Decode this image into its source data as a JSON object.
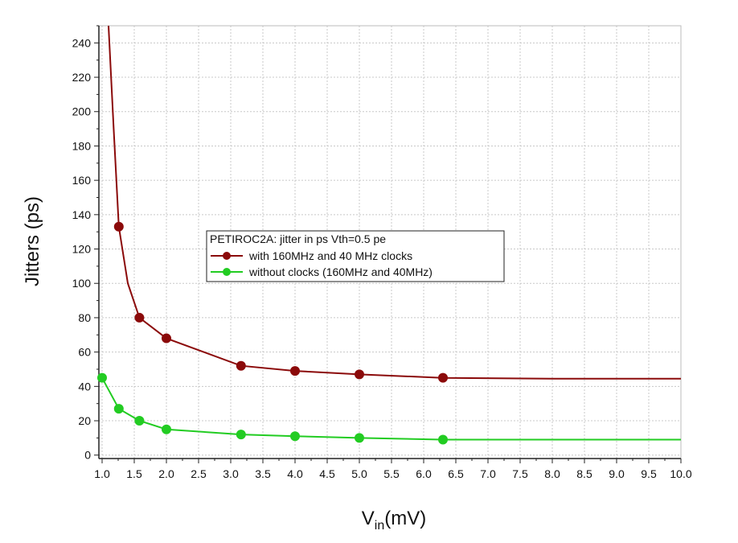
{
  "chart_data": {
    "type": "line",
    "title": "",
    "xlabel_main": "V",
    "xlabel_sub": "in",
    "xlabel_unit": "(mV)",
    "ylabel": "Jitters (ps)",
    "xlim": [
      0.95,
      10.0
    ],
    "ylim": [
      -2,
      250
    ],
    "x_ticks": [
      "1.0",
      "1.5",
      "2.0",
      "2.5",
      "3.0",
      "3.5",
      "4.0",
      "4.5",
      "5.0",
      "5.5",
      "6.0",
      "6.5",
      "7.0",
      "7.5",
      "8.0",
      "8.5",
      "9.0",
      "9.5",
      "10.0"
    ],
    "y_ticks": [
      "0",
      "20",
      "40",
      "60",
      "80",
      "100",
      "120",
      "140",
      "160",
      "180",
      "200",
      "220",
      "240"
    ],
    "grid": true,
    "legend": {
      "placement": "center",
      "title": "PETIROC2A: jitter in ps Vth=0.5 pe"
    },
    "series": [
      {
        "name": "with 160MHz and 40 MHz clocks",
        "color": "#8b0a0a",
        "x": [
          1.26,
          1.58,
          2.0,
          3.16,
          4.0,
          5.0,
          6.3
        ],
        "y": [
          133,
          80,
          68,
          52,
          49,
          47,
          45
        ],
        "curve": [
          [
            1.1,
            250
          ],
          [
            1.18,
            190
          ],
          [
            1.26,
            133
          ],
          [
            1.4,
            100
          ],
          [
            1.58,
            80
          ],
          [
            2.0,
            68
          ],
          [
            3.16,
            52
          ],
          [
            4.0,
            49
          ],
          [
            5.0,
            47
          ],
          [
            6.3,
            45
          ],
          [
            8.0,
            44.5
          ],
          [
            10.0,
            44.5
          ]
        ]
      },
      {
        "name": "without clocks (160MHz and 40MHz)",
        "color": "#22cc22",
        "x": [
          1.0,
          1.26,
          1.58,
          2.0,
          3.16,
          4.0,
          5.0,
          6.3
        ],
        "y": [
          45,
          27,
          20,
          15,
          12,
          11,
          10,
          9
        ],
        "curve": [
          [
            1.0,
            45
          ],
          [
            1.26,
            27
          ],
          [
            1.58,
            20
          ],
          [
            2.0,
            15
          ],
          [
            3.16,
            12
          ],
          [
            4.0,
            11
          ],
          [
            5.0,
            10
          ],
          [
            6.3,
            9
          ],
          [
            8.0,
            9
          ],
          [
            10.0,
            9
          ]
        ]
      }
    ]
  }
}
